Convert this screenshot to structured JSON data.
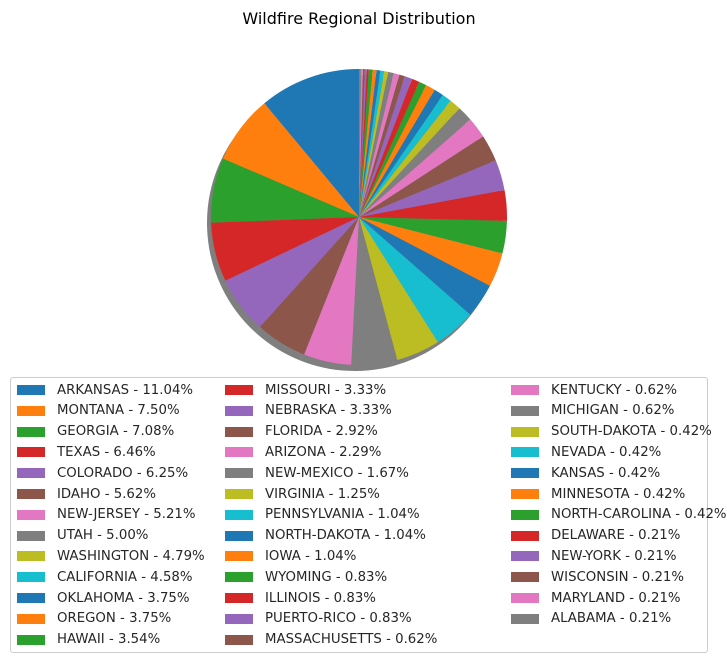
{
  "chart_data": {
    "type": "pie",
    "title": "Wildfire Regional Distribution",
    "shadow": true,
    "start_angle_deg": 90,
    "direction": "counterclockwise",
    "legend_position": "bottom",
    "legend_columns": 3,
    "palette": [
      "#1f77b4",
      "#ff7f0e",
      "#2ca02c",
      "#d62728",
      "#9467bd",
      "#8c564b",
      "#e377c2",
      "#7f7f7f",
      "#bcbd22",
      "#17becf"
    ],
    "slices": [
      {
        "label": "ARKANSAS - 11.04%",
        "value": 11.04
      },
      {
        "label": "MONTANA - 7.50%",
        "value": 7.5
      },
      {
        "label": "GEORGIA - 7.08%",
        "value": 7.08
      },
      {
        "label": "TEXAS - 6.46%",
        "value": 6.46
      },
      {
        "label": "COLORADO - 6.25%",
        "value": 6.25
      },
      {
        "label": "IDAHO - 5.62%",
        "value": 5.62
      },
      {
        "label": "NEW-JERSEY - 5.21%",
        "value": 5.21
      },
      {
        "label": "UTAH - 5.00%",
        "value": 5.0
      },
      {
        "label": "WASHINGTON - 4.79%",
        "value": 4.79
      },
      {
        "label": "CALIFORNIA - 4.58%",
        "value": 4.58
      },
      {
        "label": "OKLAHOMA - 3.75%",
        "value": 3.75
      },
      {
        "label": "OREGON - 3.75%",
        "value": 3.75
      },
      {
        "label": "HAWAII - 3.54%",
        "value": 3.54
      },
      {
        "label": "MISSOURI - 3.33%",
        "value": 3.33
      },
      {
        "label": "NEBRASKA - 3.33%",
        "value": 3.33
      },
      {
        "label": "FLORIDA - 2.92%",
        "value": 2.92
      },
      {
        "label": "ARIZONA - 2.29%",
        "value": 2.29
      },
      {
        "label": "NEW-MEXICO - 1.67%",
        "value": 1.67
      },
      {
        "label": "VIRGINIA - 1.25%",
        "value": 1.25
      },
      {
        "label": "PENNSYLVANIA - 1.04%",
        "value": 1.04
      },
      {
        "label": "NORTH-DAKOTA - 1.04%",
        "value": 1.04
      },
      {
        "label": "IOWA - 1.04%",
        "value": 1.04
      },
      {
        "label": "WYOMING - 0.83%",
        "value": 0.83
      },
      {
        "label": "ILLINOIS - 0.83%",
        "value": 0.83
      },
      {
        "label": "PUERTO-RICO - 0.83%",
        "value": 0.83
      },
      {
        "label": "MASSACHUSETTS - 0.62%",
        "value": 0.62
      },
      {
        "label": "KENTUCKY - 0.62%",
        "value": 0.62
      },
      {
        "label": "MICHIGAN - 0.62%",
        "value": 0.62
      },
      {
        "label": "SOUTH-DAKOTA - 0.42%",
        "value": 0.42
      },
      {
        "label": "NEVADA - 0.42%",
        "value": 0.42
      },
      {
        "label": "KANSAS - 0.42%",
        "value": 0.42
      },
      {
        "label": "MINNESOTA - 0.42%",
        "value": 0.42
      },
      {
        "label": "NORTH-CAROLINA - 0.42%",
        "value": 0.42
      },
      {
        "label": "DELAWARE - 0.21%",
        "value": 0.21
      },
      {
        "label": "NEW-YORK - 0.21%",
        "value": 0.21
      },
      {
        "label": "WISCONSIN - 0.21%",
        "value": 0.21
      },
      {
        "label": "MARYLAND - 0.21%",
        "value": 0.21
      },
      {
        "label": "ALABAMA - 0.21%",
        "value": 0.21
      }
    ]
  }
}
